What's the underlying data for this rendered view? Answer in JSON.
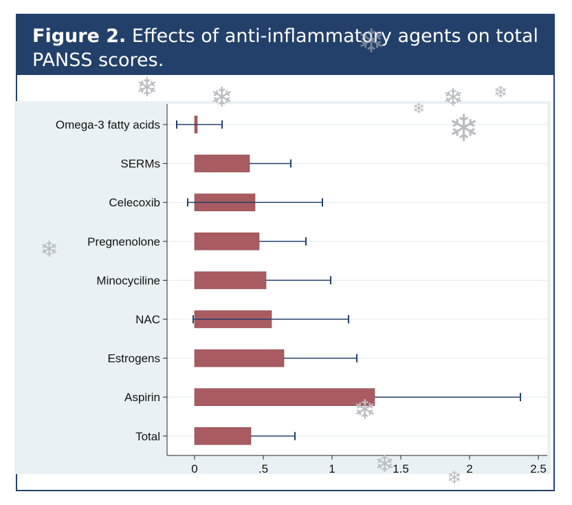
{
  "figure": {
    "label": "Figure 2.",
    "caption": "Effects of anti-inflammatory agents on total PANSS scores."
  },
  "colors": {
    "header_bg": "#23406a",
    "plot_bg": "#eaf1f4",
    "bar_fill": "#a85b60",
    "error_bar": "#23406a"
  },
  "decorations": {
    "icon": "snowflake-icon",
    "glyph": "❄"
  },
  "chart_data": {
    "type": "bar",
    "orientation": "horizontal",
    "title": "",
    "xlabel": "",
    "ylabel": "",
    "xlim": [
      -0.2,
      2.55
    ],
    "grid": true,
    "categories": [
      "Omega-3 fatty acids",
      "SERMs",
      "Celecoxib",
      "Pregnenolone",
      "Minocyciline",
      "NAC",
      "Estrogens",
      "Aspirin",
      "Total"
    ],
    "values": [
      0.02,
      0.4,
      0.44,
      0.47,
      0.52,
      0.56,
      0.65,
      1.31,
      0.41
    ],
    "error_low": [
      -0.13,
      0.4,
      -0.05,
      0.47,
      0.52,
      -0.01,
      0.65,
      1.31,
      0.41
    ],
    "error_high": [
      0.2,
      0.7,
      0.93,
      0.81,
      0.99,
      1.12,
      1.18,
      2.37,
      0.73
    ],
    "x_ticks": [
      0,
      0.5,
      1,
      1.5,
      2,
      2.5
    ],
    "x_tick_labels": [
      "0",
      ".5",
      "1",
      "1.5",
      "2",
      "2.5"
    ]
  }
}
